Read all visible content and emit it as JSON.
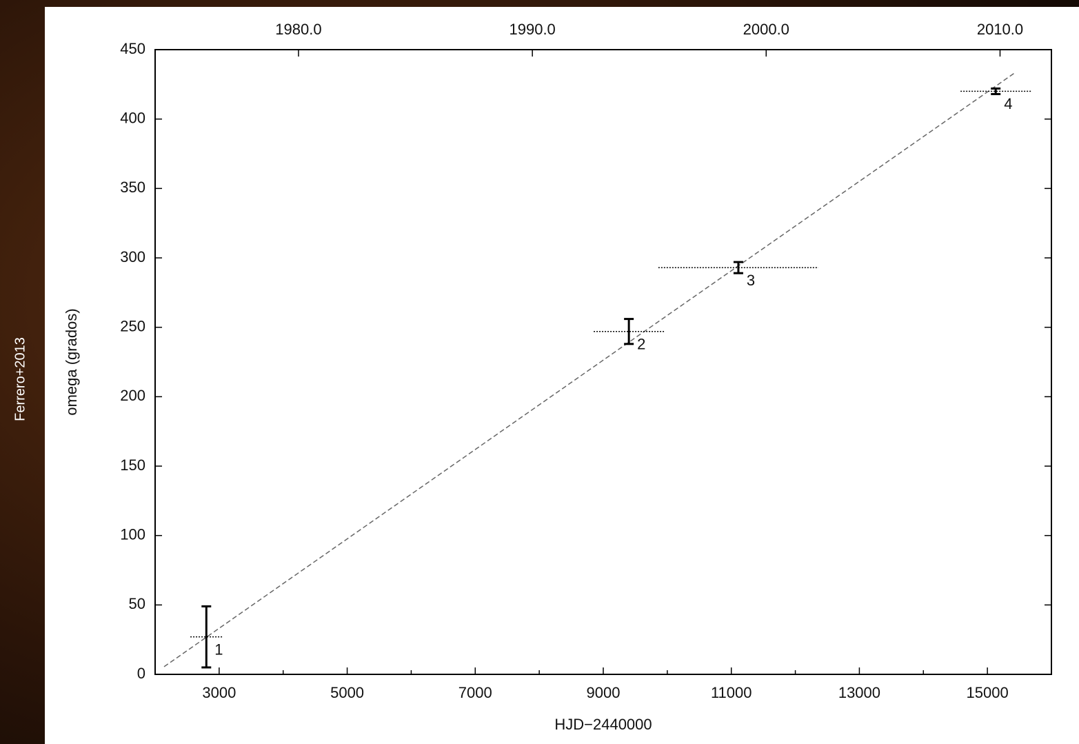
{
  "side_note": "Ferrero+2013",
  "chart_data": {
    "type": "scatter",
    "xlabel": "HJD−2440000",
    "ylabel": "omega (grados)",
    "points": {
      "x": [
        2800,
        9400,
        11110,
        15130
      ],
      "values": [
        27,
        247,
        293,
        420
      ],
      "yerr": [
        22,
        9,
        4,
        2
      ],
      "xerr": [
        250,
        550,
        1250,
        550
      ],
      "labels": [
        "1",
        "2",
        "3",
        "4"
      ],
      "color": "#000000"
    },
    "fit": {
      "x": [
        2140,
        15440
      ],
      "values": [
        5.5,
        433.7
      ],
      "color": "#666666"
    },
    "xlim": [
      2000,
      16000
    ],
    "ylim": [
      0,
      450
    ],
    "xticks": [
      3000,
      5000,
      7000,
      9000,
      11000,
      13000,
      15000
    ],
    "xminorticks": [
      4000,
      6000,
      8000,
      10000,
      12000,
      14000
    ],
    "x2ticks": [
      {
        "value": 4239.5,
        "label": "1980.0"
      },
      {
        "value": 7892.5,
        "label": "1990.0"
      },
      {
        "value": 11544.5,
        "label": "2000.0"
      },
      {
        "value": 15197.5,
        "label": "2010.0"
      }
    ],
    "yticks": [
      0,
      50,
      100,
      150,
      200,
      250,
      300,
      350,
      400,
      450
    ]
  }
}
